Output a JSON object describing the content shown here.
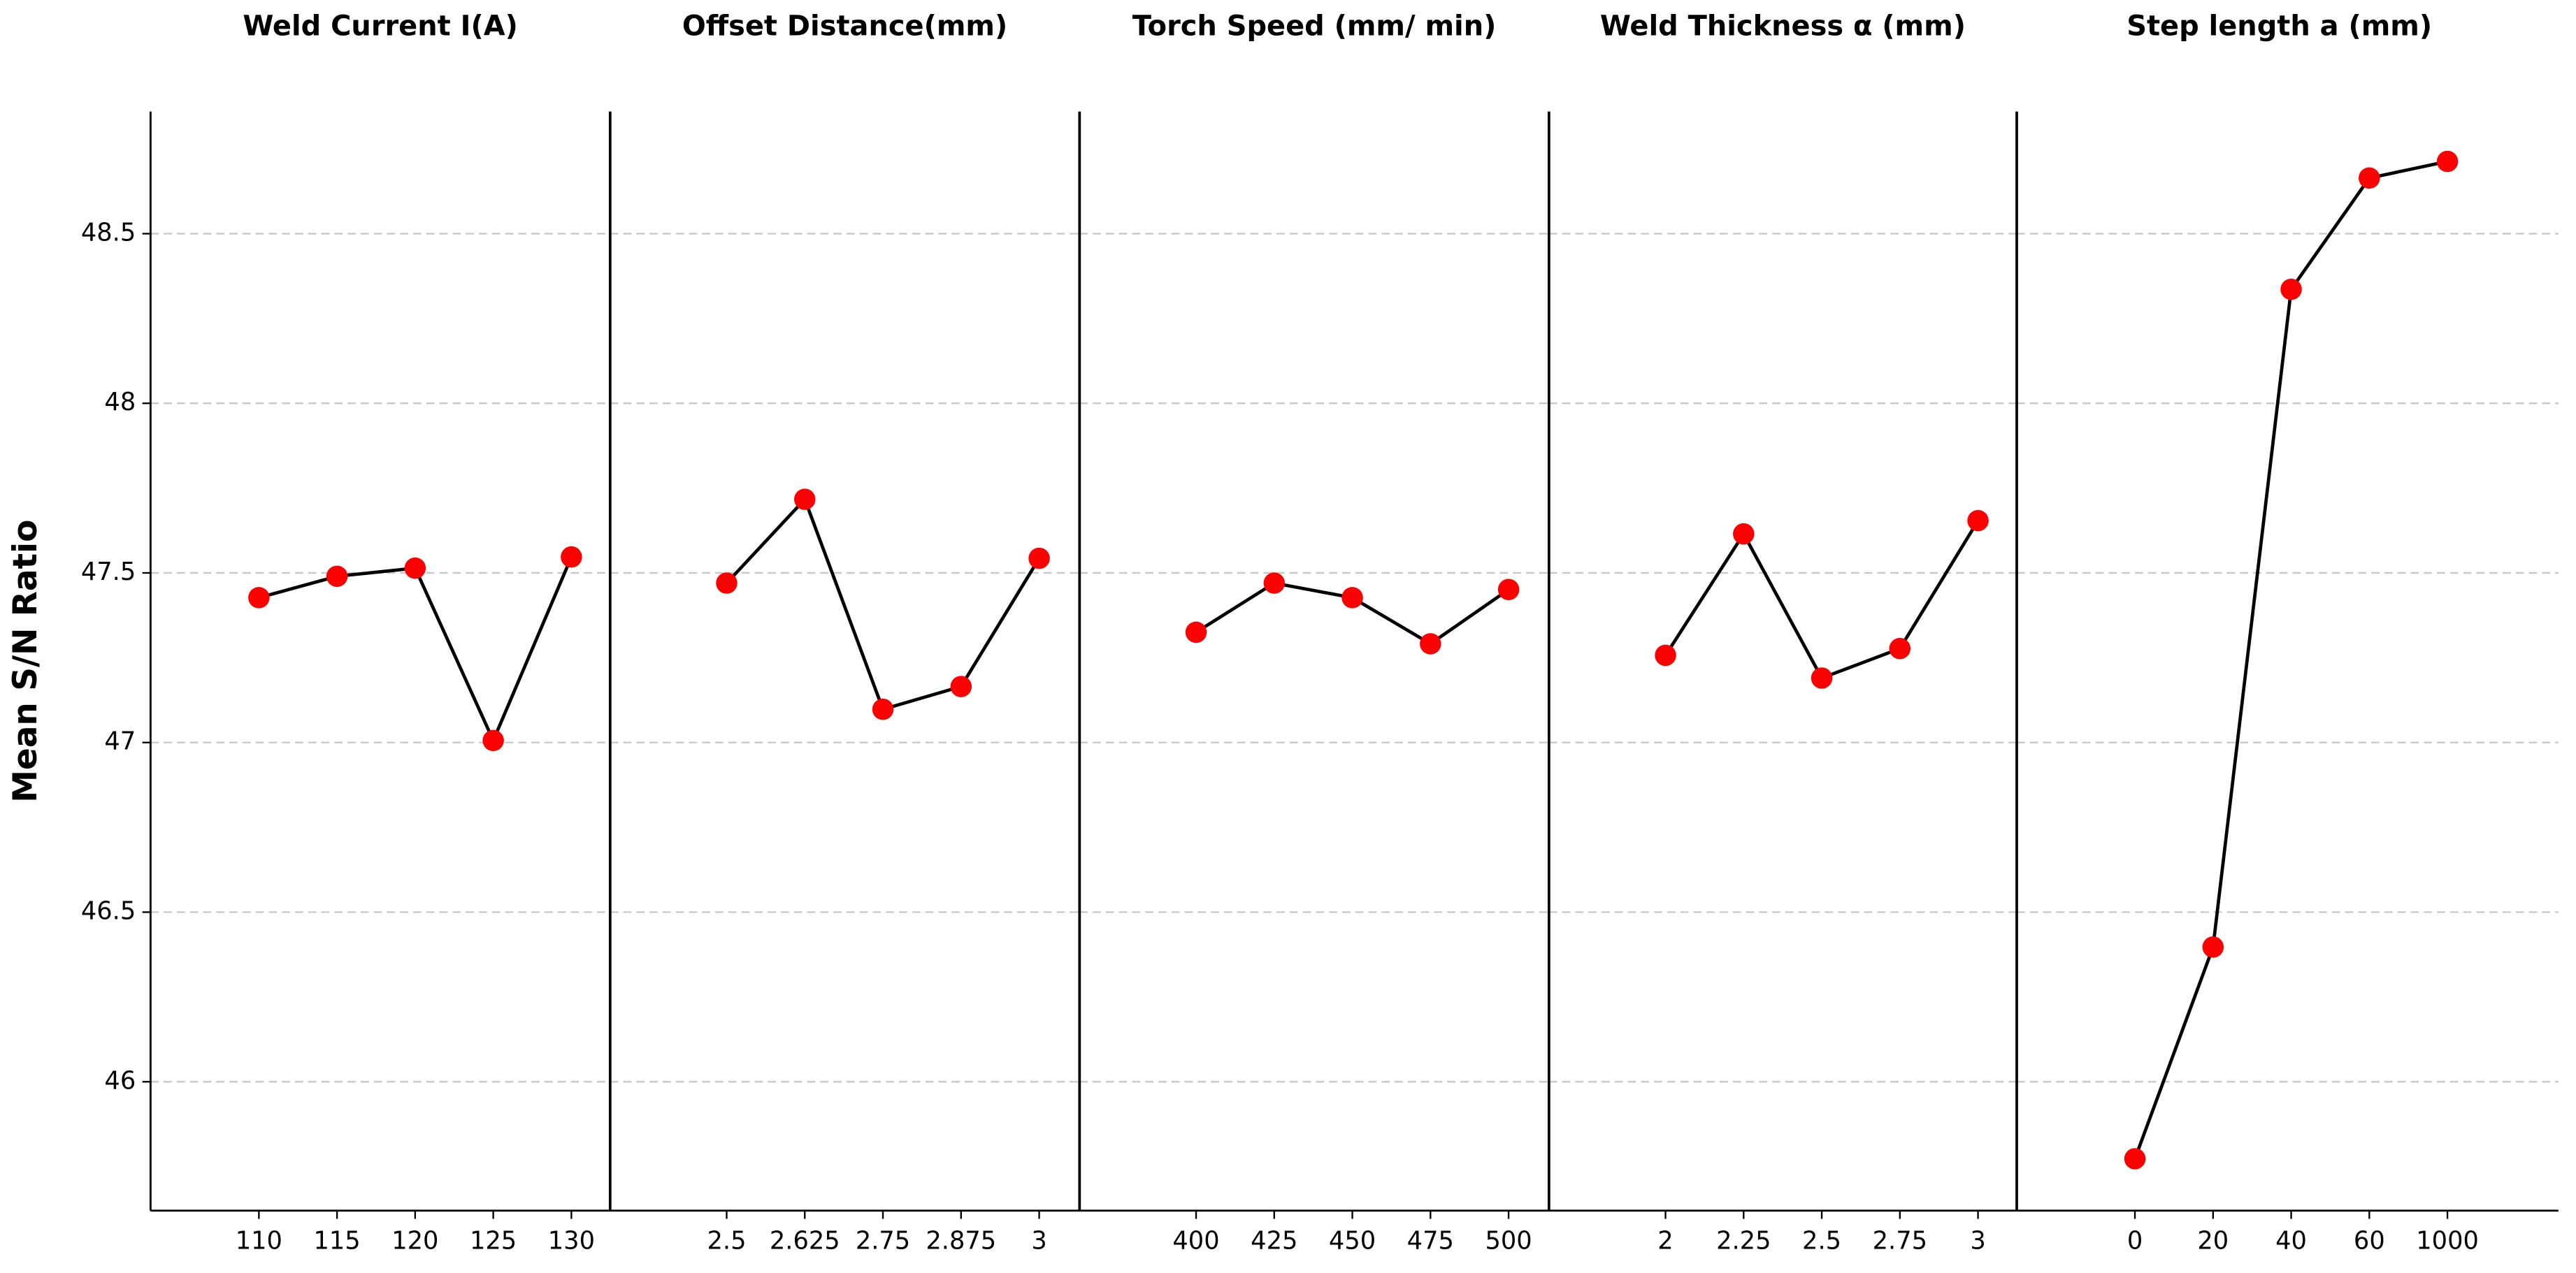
{
  "chart_data": [
    {
      "type": "line",
      "title": "Weld Current I(A)",
      "ylabel": "Mean S/N Ratio",
      "categories": [
        "110",
        "115",
        "120",
        "125",
        "130"
      ],
      "values": [
        47.427,
        47.49,
        47.514,
        47.006,
        47.547
      ],
      "color": "#000000",
      "marker_color": "#ff0000",
      "ylim": [
        45.62,
        48.86
      ],
      "yticks": [
        46.0,
        46.5,
        47.0,
        47.5,
        48.0,
        48.5
      ],
      "grid": true
    },
    {
      "type": "line",
      "title": "Offset Distance(mm)",
      "categories": [
        "2.5",
        "2.625",
        "2.75",
        "2.875",
        "3"
      ],
      "values": [
        47.47,
        47.717,
        47.098,
        47.165,
        47.543
      ],
      "color": "#000000",
      "marker_color": "#ff0000",
      "ylim": [
        45.62,
        48.86
      ],
      "yticks": [
        46.0,
        46.5,
        47.0,
        47.5,
        48.0,
        48.5
      ],
      "grid": true
    },
    {
      "type": "line",
      "title": "Torch Speed (mm/ min)",
      "categories": [
        "400",
        "425",
        "450",
        "475",
        "500"
      ],
      "values": [
        47.325,
        47.47,
        47.427,
        47.291,
        47.451
      ],
      "color": "#000000",
      "marker_color": "#ff0000",
      "ylim": [
        45.62,
        48.86
      ],
      "yticks": [
        46.0,
        46.5,
        47.0,
        47.5,
        48.0,
        48.5
      ],
      "grid": true
    },
    {
      "type": "line",
      "title": "Weld Thickness α (mm)",
      "categories": [
        "2",
        "2.25",
        "2.5",
        "2.75",
        "3"
      ],
      "values": [
        47.257,
        47.615,
        47.19,
        47.277,
        47.654
      ],
      "color": "#000000",
      "marker_color": "#ff0000",
      "ylim": [
        45.62,
        48.86
      ],
      "yticks": [
        46.0,
        46.5,
        47.0,
        47.5,
        48.0,
        48.5
      ],
      "grid": true
    },
    {
      "type": "line",
      "title": "Step length  a (mm)",
      "categories": [
        "0",
        "20",
        "40",
        "60",
        "1000"
      ],
      "values": [
        45.773,
        46.397,
        48.336,
        48.664,
        48.713
      ],
      "color": "#000000",
      "marker_color": "#ff0000",
      "ylim": [
        45.62,
        48.86
      ],
      "yticks": [
        46.0,
        46.5,
        47.0,
        47.5,
        48.0,
        48.5
      ],
      "grid": true
    }
  ]
}
